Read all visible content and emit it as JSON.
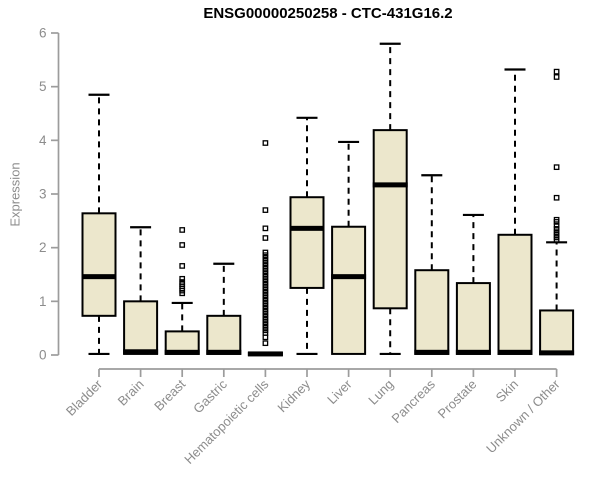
{
  "page": {
    "title": "ENSG00000250258 - CTC-431G16.2"
  },
  "colors": {
    "box_fill": "#ece7cc",
    "box_border": "#000000",
    "median": "#000000",
    "whisker": "#000000",
    "outlier": "#000000",
    "axis_line": "#9c9c9c",
    "tick_label": "#8c8c8c",
    "title_text": "#000000",
    "background": "#ffffff"
  },
  "chart_data": {
    "type": "boxplot",
    "title": "ENSG00000250258 - CTC-431G16.2",
    "xlabel": "",
    "ylabel": "Expression",
    "ylim": [
      0,
      6
    ],
    "yticks": [
      0,
      1,
      2,
      3,
      4,
      5,
      6
    ],
    "grid": false,
    "legend": false,
    "x_tick_rotation": -45,
    "categories": [
      "Bladder",
      "Brain",
      "Breast",
      "Gastric",
      "Hematopoietic cells",
      "Kidney",
      "Liver",
      "Lung",
      "Pancreas",
      "Prostate",
      "Skin",
      "Unknown / Other"
    ],
    "series": [
      {
        "category": "Bladder",
        "whisker_low": 0.02,
        "q1": 0.73,
        "median": 1.46,
        "q3": 2.64,
        "whisker_high": 4.85,
        "outliers": []
      },
      {
        "category": "Brain",
        "whisker_low": 0.02,
        "q1": 0.02,
        "median": 0.06,
        "q3": 1.0,
        "whisker_high": 2.38,
        "outliers": []
      },
      {
        "category": "Breast",
        "whisker_low": 0.02,
        "q1": 0.02,
        "median": 0.05,
        "q3": 0.44,
        "whisker_high": 0.97,
        "outliers": [
          1.15,
          1.2,
          1.24,
          1.28,
          1.32,
          1.36,
          1.42,
          1.66,
          2.05,
          2.33
        ]
      },
      {
        "category": "Gastric",
        "whisker_low": 0.02,
        "q1": 0.02,
        "median": 0.05,
        "q3": 0.73,
        "whisker_high": 1.7,
        "outliers": []
      },
      {
        "category": "Hematopoietic cells",
        "whisker_low": 0.0,
        "q1": 0.0,
        "median": 0.02,
        "q3": 0.04,
        "whisker_high": 0.04,
        "outliers": [
          0.22,
          0.33,
          0.41,
          0.46,
          0.51,
          0.56,
          0.61,
          0.66,
          0.71,
          0.76,
          0.81,
          0.86,
          0.91,
          0.96,
          1.01,
          1.06,
          1.11,
          1.16,
          1.21,
          1.26,
          1.31,
          1.36,
          1.41,
          1.46,
          1.51,
          1.56,
          1.61,
          1.66,
          1.71,
          1.76,
          1.81,
          1.86,
          1.91,
          2.18,
          2.36,
          2.7,
          3.95
        ]
      },
      {
        "category": "Kidney",
        "whisker_low": 0.02,
        "q1": 1.25,
        "median": 2.36,
        "q3": 2.94,
        "whisker_high": 4.42,
        "outliers": []
      },
      {
        "category": "Liver",
        "whisker_low": 0.02,
        "q1": 0.02,
        "median": 1.46,
        "q3": 2.39,
        "whisker_high": 3.97,
        "outliers": []
      },
      {
        "category": "Lung",
        "whisker_low": 0.02,
        "q1": 0.87,
        "median": 3.17,
        "q3": 4.19,
        "whisker_high": 5.8,
        "outliers": []
      },
      {
        "category": "Pancreas",
        "whisker_low": 0.02,
        "q1": 0.02,
        "median": 0.05,
        "q3": 1.58,
        "whisker_high": 3.35,
        "outliers": []
      },
      {
        "category": "Prostate",
        "whisker_low": 0.02,
        "q1": 0.02,
        "median": 0.05,
        "q3": 1.34,
        "whisker_high": 2.61,
        "outliers": []
      },
      {
        "category": "Skin",
        "whisker_low": 0.02,
        "q1": 0.02,
        "median": 0.05,
        "q3": 2.24,
        "whisker_high": 5.32,
        "outliers": []
      },
      {
        "category": "Unknown / Other",
        "whisker_low": 0.02,
        "q1": 0.02,
        "median": 0.04,
        "q3": 0.83,
        "whisker_high": 2.1,
        "outliers": [
          2.14,
          2.19,
          2.24,
          2.29,
          2.35,
          2.41,
          2.48,
          2.52,
          2.93,
          3.5,
          5.18,
          5.28
        ]
      }
    ]
  }
}
